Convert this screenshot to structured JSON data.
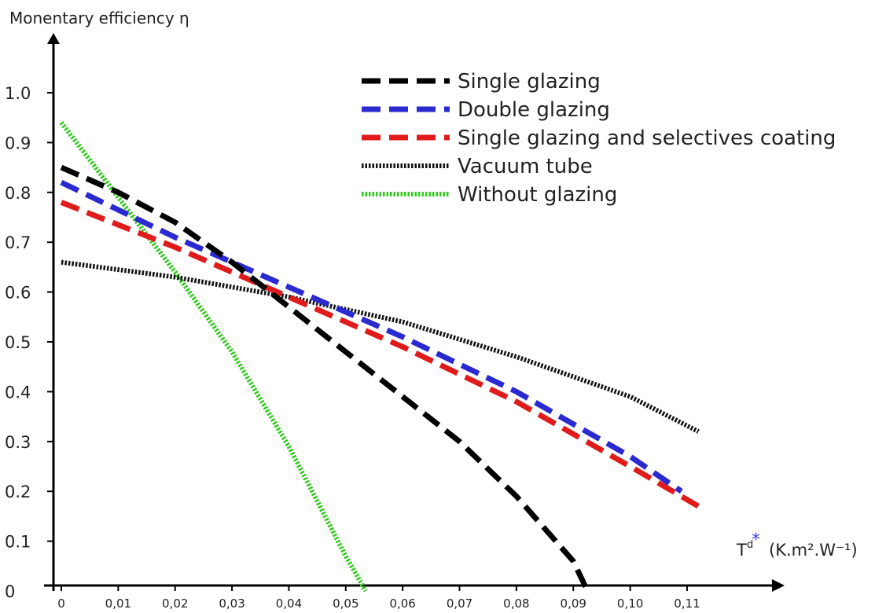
{
  "chart_data": {
    "type": "line",
    "ylabel": "Monentary efficiency η",
    "xlabel": {
      "symbol": "T",
      "superscript": "d",
      "marker": "*",
      "units": "(K.m².W⁻¹)"
    },
    "xlim": [
      0,
      0.115
    ],
    "ylim": [
      0,
      1.0
    ],
    "x_ticks": [
      "0",
      "0,01",
      "0,02",
      "0,03",
      "0,04",
      "0,05",
      "0,06",
      "0,07",
      "0,08",
      "0,09",
      "0,10",
      "0,11"
    ],
    "x_tick_values": [
      0,
      0.01,
      0.02,
      0.03,
      0.04,
      0.05,
      0.06,
      0.07,
      0.08,
      0.09,
      0.1,
      0.11
    ],
    "y_ticks": [
      "0",
      "0.1",
      "0.2",
      "0.3",
      "0.4",
      "0.5",
      "0.6",
      "0.7",
      "0.8",
      "0.9",
      "1.0"
    ],
    "y_tick_values": [
      0,
      0.1,
      0.2,
      0.3,
      0.4,
      0.5,
      0.6,
      0.7,
      0.8,
      0.9,
      1.0
    ],
    "grid": false,
    "legend_position": "top-right",
    "series": [
      {
        "name": "Single glazing",
        "color": "#000000",
        "style": "dashed",
        "x": [
          0,
          0.01,
          0.02,
          0.03,
          0.04,
          0.05,
          0.06,
          0.07,
          0.08,
          0.09,
          0.0925
        ],
        "y": [
          0.85,
          0.8,
          0.74,
          0.66,
          0.57,
          0.48,
          0.39,
          0.3,
          0.19,
          0.06,
          0.0
        ]
      },
      {
        "name": "Double glazing",
        "color": "#2a2ad0",
        "style": "dashed",
        "x": [
          0,
          0.02,
          0.04,
          0.06,
          0.08,
          0.1,
          0.109
        ],
        "y": [
          0.82,
          0.71,
          0.61,
          0.51,
          0.4,
          0.27,
          0.2
        ]
      },
      {
        "name": "Single glazing and selectives coating",
        "color": "#e01b1b",
        "style": "dashed",
        "x": [
          0,
          0.02,
          0.04,
          0.06,
          0.08,
          0.1,
          0.112
        ],
        "y": [
          0.78,
          0.69,
          0.59,
          0.49,
          0.38,
          0.25,
          0.17
        ]
      },
      {
        "name": "Vacuum tube",
        "color": "#111111",
        "style": "dotted",
        "x": [
          0,
          0.02,
          0.04,
          0.06,
          0.08,
          0.1,
          0.112
        ],
        "y": [
          0.66,
          0.63,
          0.59,
          0.54,
          0.47,
          0.39,
          0.32
        ]
      },
      {
        "name": "Without glazing",
        "color": "#33c81f",
        "style": "dotted",
        "x": [
          0,
          0.01,
          0.02,
          0.03,
          0.04,
          0.05,
          0.0535
        ],
        "y": [
          0.94,
          0.79,
          0.64,
          0.48,
          0.29,
          0.07,
          0.0
        ]
      }
    ]
  }
}
